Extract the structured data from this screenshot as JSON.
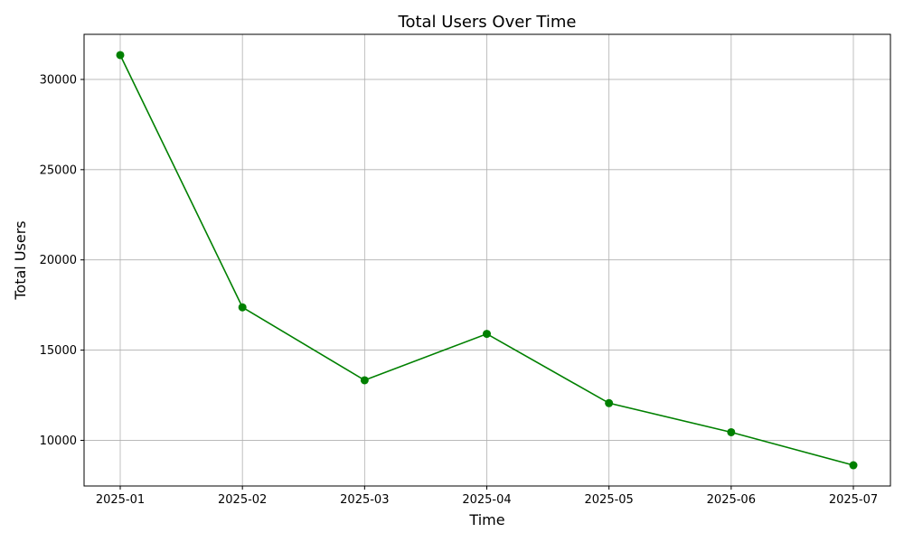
{
  "chart_data": {
    "type": "line",
    "title": "Total Users Over Time",
    "xlabel": "Time",
    "ylabel": "Total Users",
    "x": [
      "2025-01",
      "2025-02",
      "2025-03",
      "2025-04",
      "2025-05",
      "2025-06",
      "2025-07"
    ],
    "series": [
      {
        "values": [
          31350,
          17370,
          13330,
          15900,
          12060,
          10450,
          8620
        ],
        "color": "#008000",
        "marker": "circle"
      }
    ],
    "ylim": [
      7470,
      32500
    ],
    "yticks": [
      10000,
      15000,
      20000,
      25000,
      30000
    ],
    "grid": true,
    "legend": "none"
  }
}
